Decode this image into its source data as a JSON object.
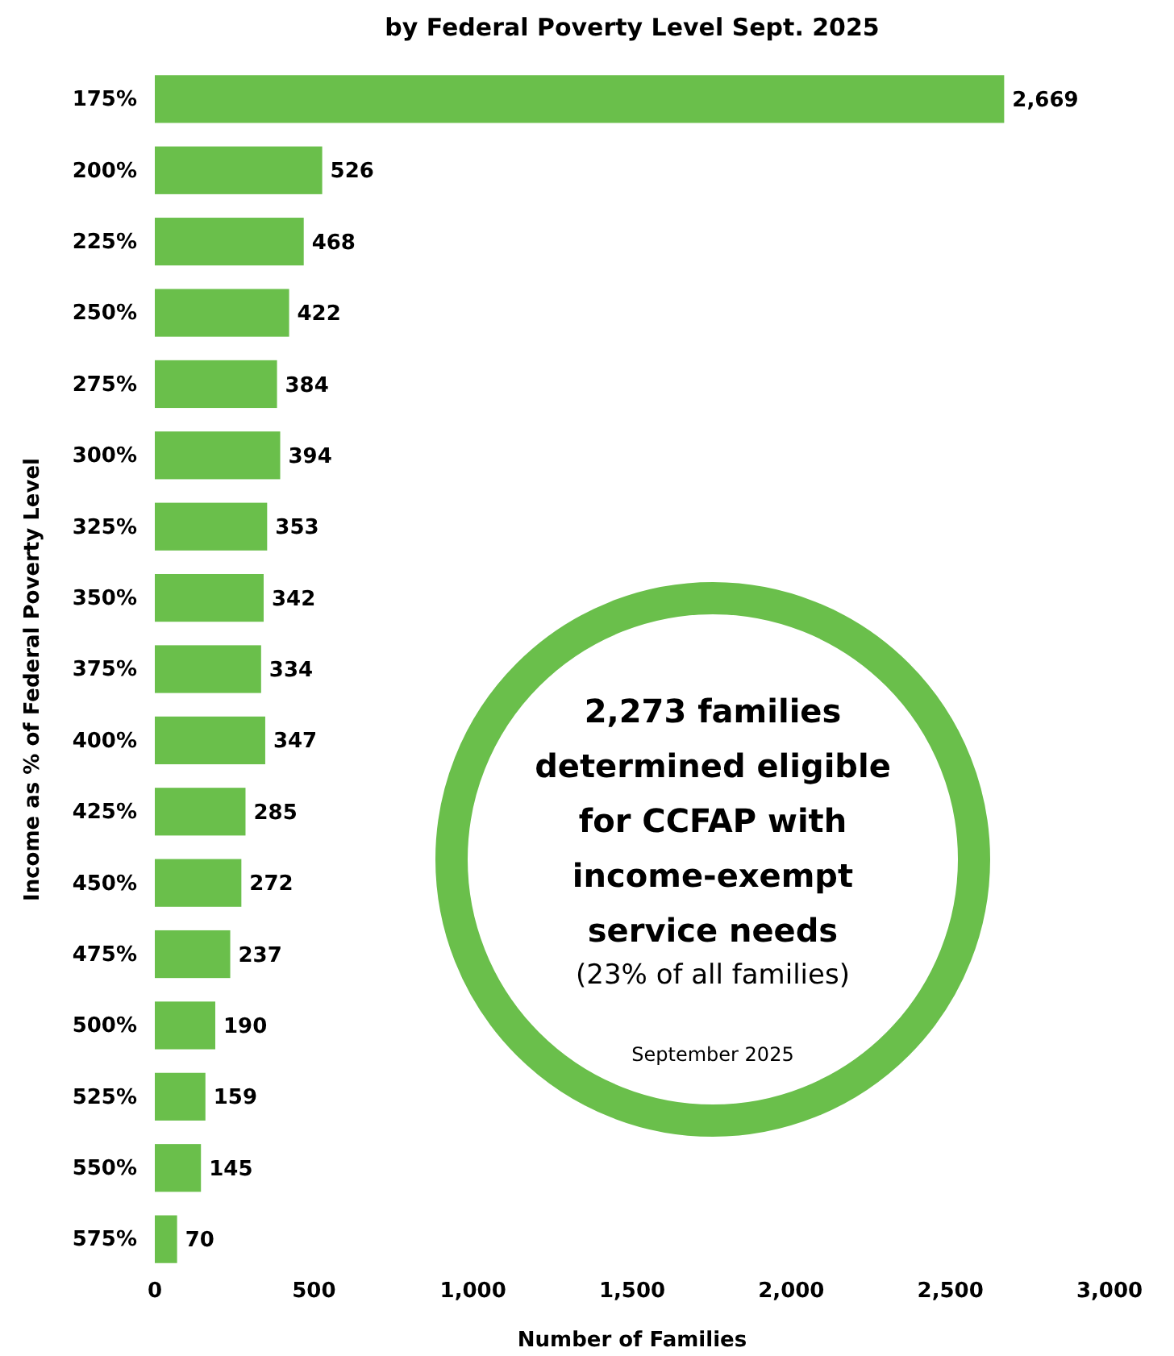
{
  "chart_data": {
    "type": "bar",
    "orientation": "horizontal",
    "title": "by Federal Poverty Level Sept. 2025",
    "xlabel": "Number of Families",
    "ylabel": "Income as % of Federal Poverty Level",
    "categories": [
      "175%",
      "200%",
      "225%",
      "250%",
      "275%",
      "300%",
      "325%",
      "350%",
      "375%",
      "400%",
      "425%",
      "450%",
      "475%",
      "500%",
      "525%",
      "550%",
      "575%"
    ],
    "values": [
      2669,
      526,
      468,
      422,
      384,
      394,
      353,
      342,
      334,
      347,
      285,
      272,
      237,
      190,
      159,
      145,
      70
    ],
    "value_labels": [
      "2,669",
      "526",
      "468",
      "422",
      "384",
      "394",
      "353",
      "342",
      "334",
      "347",
      "285",
      "272",
      "237",
      "190",
      "159",
      "145",
      "70"
    ],
    "color": "#6abf4b",
    "xlim": [
      0,
      3000
    ],
    "xticks": [
      {
        "value": 0,
        "label": "0"
      },
      {
        "value": 500,
        "label": "500"
      },
      {
        "value": 1000,
        "label": "1,000"
      },
      {
        "value": 1500,
        "label": "1,500"
      },
      {
        "value": 2000,
        "label": "2,000"
      },
      {
        "value": 2500,
        "label": "2,500"
      },
      {
        "value": 3000,
        "label": "3,000"
      }
    ],
    "grid": false,
    "annotations": [
      "2,273 families determined eligible for CCFAP with income-exempt service needs",
      "(23% of all families)",
      "September 2025"
    ]
  }
}
